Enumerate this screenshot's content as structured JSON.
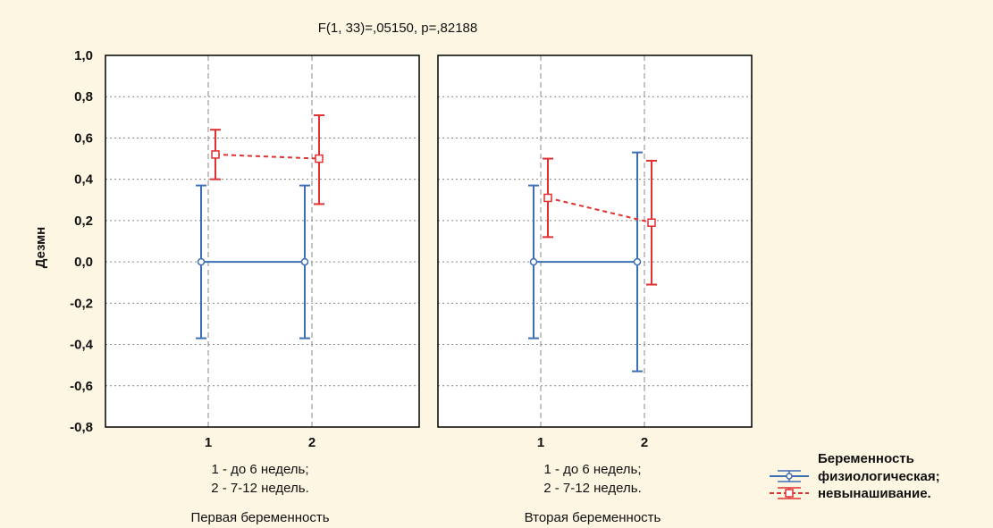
{
  "chart_data": {
    "type": "line",
    "title": "F(1, 33)=,05150, p=,82188",
    "ylabel": "Дезмн",
    "ylim": [
      -0.8,
      1.0
    ],
    "yticks": [
      "1,0",
      "0,8",
      "0,6",
      "0,4",
      "0,2",
      "0,0",
      "-0,2",
      "-0,4",
      "-0,6",
      "-0,8"
    ],
    "grid": true,
    "legend": {
      "placement": "bottom-right",
      "title": "Беременность",
      "entries": [
        "физиологическая;",
        "невынашивание."
      ]
    },
    "series_styles": [
      {
        "color": "#3c6fb6",
        "marker": "circle",
        "line": "solid"
      },
      {
        "color": "#e03030",
        "marker": "square",
        "line": "dashed"
      }
    ],
    "panels": [
      {
        "name": "Первая беременность",
        "categories": [
          "1",
          "2"
        ],
        "category_note": [
          "1 - до 6 недель;",
          "2 - 7-12 недель."
        ],
        "series": [
          {
            "values": [
              0.0,
              0.0
            ],
            "lower": [
              -0.37,
              -0.37
            ],
            "upper": [
              0.37,
              0.37
            ]
          },
          {
            "values": [
              0.52,
              0.5
            ],
            "lower": [
              0.4,
              0.28
            ],
            "upper": [
              0.64,
              0.71
            ]
          }
        ]
      },
      {
        "name": "Вторая беременность",
        "categories": [
          "1",
          "2"
        ],
        "category_note": [
          "1 - до 6 недель;",
          "2 - 7-12 недель."
        ],
        "series": [
          {
            "values": [
              0.0,
              0.0
            ],
            "lower": [
              -0.37,
              -0.53
            ],
            "upper": [
              0.37,
              0.53
            ]
          },
          {
            "values": [
              0.31,
              0.19
            ],
            "lower": [
              0.12,
              -0.11
            ],
            "upper": [
              0.5,
              0.49
            ]
          }
        ]
      }
    ]
  }
}
